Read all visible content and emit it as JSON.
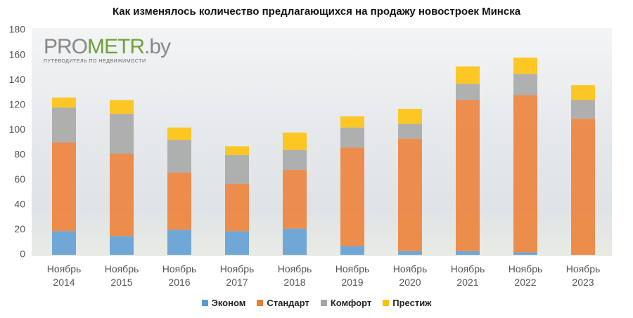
{
  "chart_data": {
    "type": "stacked_bar",
    "title": "Как изменялось количество предлагающихся на продажу новостроек Минска",
    "logo": {
      "name_part1": "PRO",
      "name_part2": "METR",
      "name_part3": ".by",
      "tagline": "ПУТЕВОДИТЕЛЬ ПО НЕДВИЖИМОСТИ"
    },
    "categories": [
      "Ноябрь 2014",
      "Ноябрь 2015",
      "Ноябрь 2016",
      "Ноябрь 2017",
      "Ноябрь 2018",
      "Ноябрь 2019",
      "Ноябрь 2020",
      "Ноябрь 2021",
      "Ноябрь 2022",
      "Ноябрь 2023"
    ],
    "series": [
      {
        "name": "Эконом",
        "color": "#5b9bd5",
        "values": [
          19,
          15,
          20,
          19,
          21,
          7,
          3,
          3,
          2,
          0
        ]
      },
      {
        "name": "Стандарт",
        "color": "#ed7d31",
        "values": [
          71,
          66,
          46,
          38,
          47,
          79,
          90,
          121,
          126,
          109
        ]
      },
      {
        "name": "Комфорт",
        "color": "#a5a5a5",
        "values": [
          28,
          32,
          26,
          23,
          16,
          16,
          12,
          13,
          17,
          15
        ]
      },
      {
        "name": "Престиж",
        "color": "#ffc000",
        "values": [
          8,
          11,
          10,
          7,
          14,
          9,
          12,
          14,
          13,
          12
        ]
      }
    ],
    "ylim": [
      0,
      180
    ],
    "yticks": [
      0,
      20,
      40,
      60,
      80,
      100,
      120,
      140,
      160,
      180
    ],
    "grid": false
  }
}
